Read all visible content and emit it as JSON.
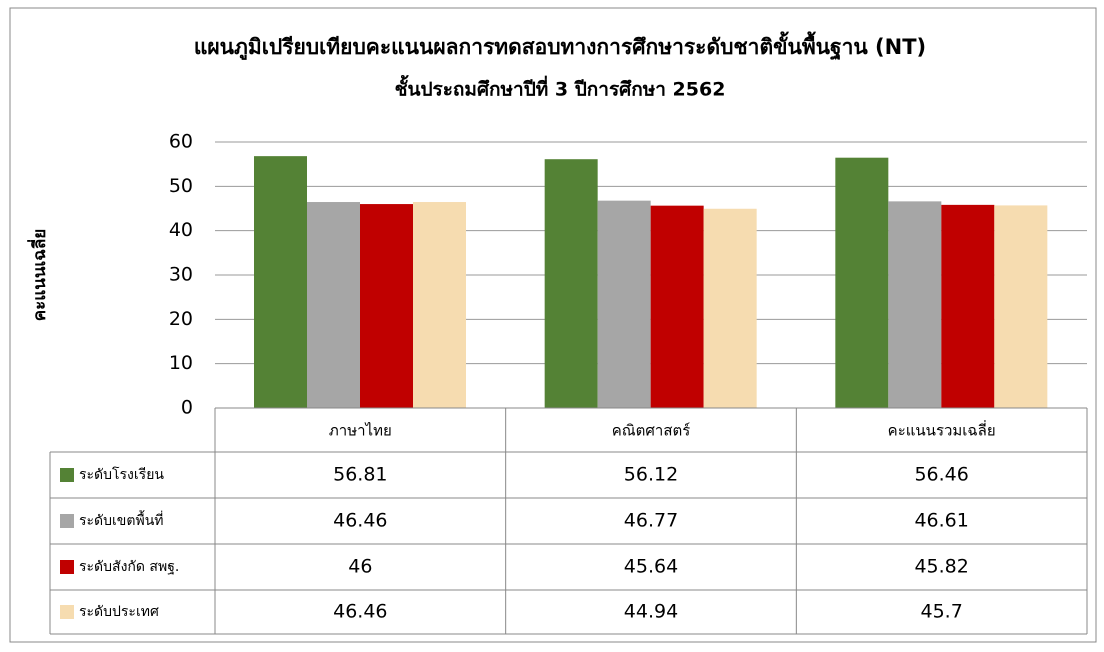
{
  "chart_data": {
    "type": "bar",
    "title": "แผนภูมิเปรียบเทียบคะแนนผลการทดสอบทางการศึกษาระดับชาติขั้นพื้นฐาน (NT)",
    "subtitle": "ชั้นประถมศึกษาปีที่ 3  ปีการศึกษา 2562",
    "y_label": "คะแนนเฉลี่ย",
    "categories": [
      "ภาษาไทย",
      "คณิตศาสตร์",
      "คะแนนรวมเฉลี่ย"
    ],
    "series": [
      {
        "name": "ระดับโรงเรียน",
        "color": "#548235",
        "values": [
          56.81,
          56.12,
          56.46
        ]
      },
      {
        "name": "ระดับเขตพื้นที่",
        "color": "#a6a6a6",
        "values": [
          46.46,
          46.77,
          46.61
        ]
      },
      {
        "name": "ระดับสังกัด สพฐ.",
        "color": "#c00000",
        "values": [
          46,
          45.64,
          45.82
        ]
      },
      {
        "name": "ระดับประเทศ",
        "color": "#f6dcb0",
        "values": [
          46.46,
          44.94,
          45.7
        ]
      }
    ],
    "ylim": [
      0,
      60
    ],
    "yticks": [
      0,
      10,
      20,
      30,
      40,
      50,
      60
    ],
    "grid": true
  }
}
